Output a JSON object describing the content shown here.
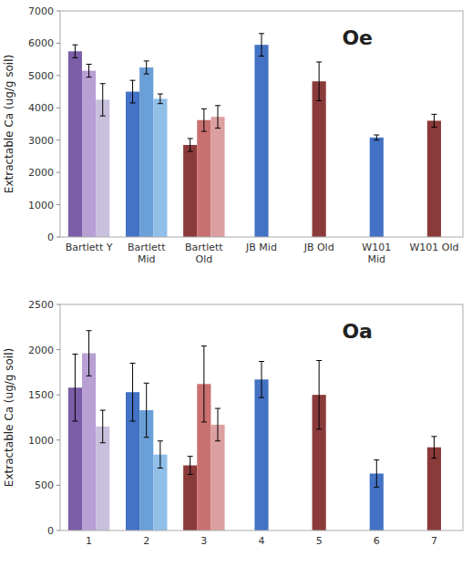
{
  "chart_data": [
    {
      "type": "bar",
      "title": "Oe",
      "ylabel": "Extractable Ca (ug/g soil)",
      "categories": [
        "Bartlett Y",
        "Bartlett\nMid",
        "Bartlett\nOld",
        "JB Mid",
        "JB Old",
        "W101\nMid",
        "W101 Old"
      ],
      "ylim": [
        0,
        7000
      ],
      "yticks": [
        0,
        1000,
        2000,
        3000,
        4000,
        5000,
        6000,
        7000
      ],
      "grid": false,
      "series": [
        {
          "values": [
            5750,
            4500,
            2850,
            5950,
            4820,
            3080,
            3600
          ],
          "errors": [
            200,
            350,
            200,
            350,
            600,
            80,
            200
          ],
          "colors": [
            "#7B5EA7",
            "#4472C4",
            "#8B3A3A",
            "#4472C4",
            "#8B3A3A",
            "#4472C4",
            "#8B3A3A"
          ]
        },
        {
          "values": [
            5150,
            5250,
            3620,
            null,
            null,
            null,
            null
          ],
          "errors": [
            200,
            200,
            350,
            null,
            null,
            null,
            null
          ],
          "colors": [
            "#B8A0D4",
            "#6A9FD8",
            "#C97070",
            null,
            null,
            null,
            null
          ]
        },
        {
          "values": [
            4250,
            4280,
            3720,
            null,
            null,
            null,
            null
          ],
          "errors": [
            500,
            150,
            350,
            null,
            null,
            null,
            null
          ],
          "colors": [
            "#C8C0DC",
            "#90BFE8",
            "#DCA0A0",
            null,
            null,
            null,
            null
          ]
        }
      ]
    },
    {
      "type": "bar",
      "title": "Oa",
      "ylabel": "Extractable Ca (ug/g soil)",
      "categories": [
        "1",
        "2",
        "3",
        "4",
        "5",
        "6",
        "7"
      ],
      "ylim": [
        0,
        2500
      ],
      "yticks": [
        0,
        500,
        1000,
        1500,
        2000,
        2500
      ],
      "grid": false,
      "series": [
        {
          "values": [
            1580,
            1530,
            720,
            1670,
            1500,
            630,
            920
          ],
          "errors": [
            370,
            320,
            100,
            200,
            380,
            150,
            120
          ],
          "colors": [
            "#7B5EA7",
            "#4472C4",
            "#8B3A3A",
            "#4472C4",
            "#8B3A3A",
            "#4472C4",
            "#8B3A3A"
          ]
        },
        {
          "values": [
            1960,
            1330,
            1620,
            null,
            null,
            null,
            null
          ],
          "errors": [
            250,
            300,
            420,
            null,
            null,
            null,
            null
          ],
          "colors": [
            "#B8A0D4",
            "#6A9FD8",
            "#C97070",
            null,
            null,
            null,
            null
          ]
        },
        {
          "values": [
            1150,
            840,
            1170,
            null,
            null,
            null,
            null
          ],
          "errors": [
            180,
            150,
            180,
            null,
            null,
            null,
            null
          ],
          "colors": [
            "#C8C0DC",
            "#90BFE8",
            "#DCA0A0",
            null,
            null,
            null,
            null
          ]
        }
      ]
    }
  ]
}
